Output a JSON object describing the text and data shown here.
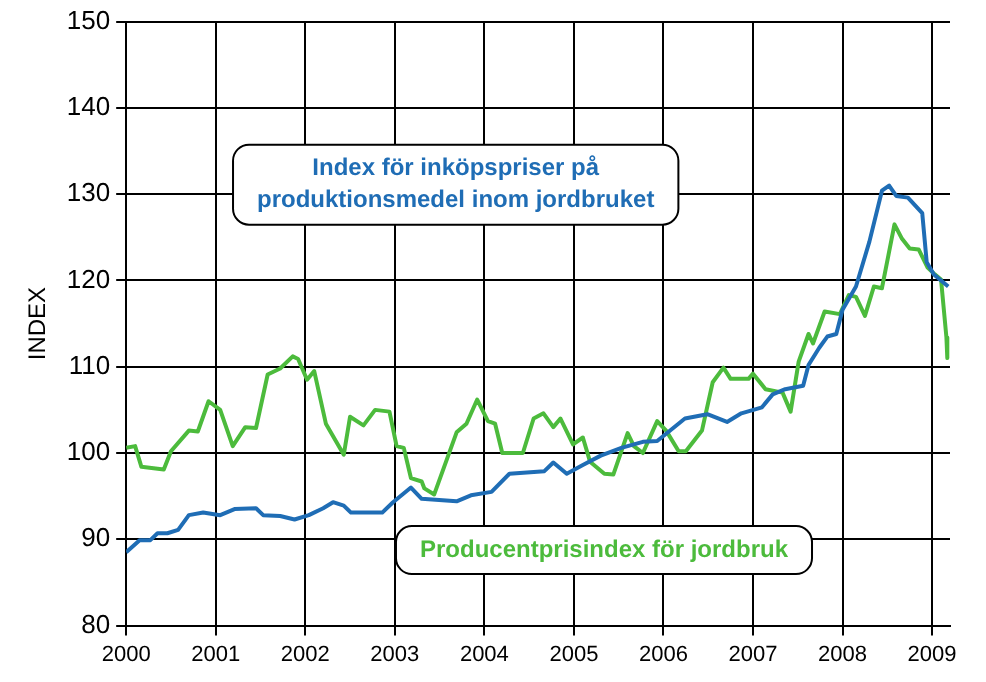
{
  "chart_data": {
    "type": "line",
    "ylabel": "INDEX",
    "xlim": [
      2000,
      2009.2
    ],
    "xticks": [
      2000,
      2001,
      2002,
      2003,
      2004,
      2005,
      2006,
      2007,
      2008,
      2009
    ],
    "ylim": [
      80,
      150
    ],
    "yticks": [
      80,
      90,
      100,
      110,
      120,
      130,
      140,
      150
    ],
    "grid": true,
    "legend": false,
    "marker": "none",
    "line_style": "solid",
    "series": [
      {
        "name": "Index för inköpspriser på produktionsmedel inom jordbruket",
        "color": "#1f6db5",
        "x": [
          2000,
          2000.15,
          2000.27,
          2000.35,
          2000.46,
          2000.58,
          2000.7,
          2000.86,
          2001.05,
          2001.21,
          2001.45,
          2001.53,
          2001.72,
          2001.88,
          2002.04,
          2002.2,
          2002.31,
          2002.43,
          2002.51,
          2002.86,
          2002.98,
          2003.18,
          2003.3,
          2003.69,
          2003.85,
          2004.08,
          2004.28,
          2004.67,
          2004.77,
          2004.92,
          2005.1,
          2005.3,
          2005.53,
          2005.77,
          2005.93,
          2006.24,
          2006.49,
          2006.71,
          2006.87,
          2007.1,
          2007.22,
          2007.36,
          2007.56,
          2007.62,
          2007.74,
          2007.83,
          2007.93,
          2008,
          2008.15,
          2008.3,
          2008.44,
          2008.52,
          2008.6,
          2008.73,
          2008.89,
          2008.94,
          2009.02,
          2009.18
        ],
        "values": [
          88.5,
          89.9,
          89.9,
          90.7,
          90.7,
          91.1,
          92.8,
          93.1,
          92.8,
          93.5,
          93.6,
          92.8,
          92.7,
          92.3,
          92.8,
          93.6,
          94.3,
          93.9,
          93.1,
          93.1,
          94.3,
          96,
          94.7,
          94.4,
          95.1,
          95.5,
          97.6,
          97.9,
          98.9,
          97.6,
          98.6,
          99.7,
          100.6,
          101.3,
          101.4,
          104,
          104.5,
          103.6,
          104.6,
          105.3,
          106.8,
          107.4,
          107.8,
          110.2,
          112.2,
          113.5,
          113.8,
          116.6,
          119.3,
          124.5,
          130.4,
          131,
          129.8,
          129.6,
          127.8,
          122.1,
          120.7,
          119.3
        ]
      },
      {
        "name": "Producentprisindex för jordbruk",
        "color": "#4cbb3c",
        "x": [
          2000,
          2000.1,
          2000.17,
          2000.42,
          2000.5,
          2000.7,
          2000.8,
          2000.92,
          2001.05,
          2001.19,
          2001.33,
          2001.45,
          2001.58,
          2001.72,
          2001.86,
          2001.92,
          2002.02,
          2002.1,
          2002.23,
          2002.43,
          2002.5,
          2002.65,
          2002.78,
          2002.94,
          2003.02,
          2003.1,
          2003.18,
          2003.3,
          2003.33,
          2003.44,
          2003.69,
          2003.8,
          2003.92,
          2004.04,
          2004.12,
          2004.2,
          2004.43,
          2004.55,
          2004.66,
          2004.77,
          2004.85,
          2004.99,
          2005.1,
          2005.18,
          2005.34,
          2005.44,
          2005.6,
          2005.67,
          2005.77,
          2005.93,
          2006.03,
          2006.17,
          2006.25,
          2006.43,
          2006.55,
          2006.67,
          2006.75,
          2006.95,
          2007,
          2007.14,
          2007.33,
          2007.42,
          2007.51,
          2007.62,
          2007.67,
          2007.8,
          2007.97,
          2008.07,
          2008.15,
          2008.25,
          2008.35,
          2008.44,
          2008.58,
          2008.66,
          2008.75,
          2008.85,
          2008.95,
          2009.03,
          2009.1,
          2009.16,
          2009.17
        ],
        "values": [
          100.6,
          100.8,
          98.4,
          98.1,
          100.2,
          102.6,
          102.5,
          106,
          105,
          100.8,
          103,
          102.9,
          109.1,
          109.8,
          111.2,
          110.9,
          108.5,
          109.5,
          103.4,
          99.8,
          104.2,
          103.2,
          105,
          104.8,
          100.8,
          100.6,
          97.1,
          96.7,
          95.9,
          95.2,
          102.4,
          103.4,
          106.2,
          103.7,
          103.4,
          100,
          100,
          104,
          104.6,
          103,
          104,
          101,
          101.8,
          99,
          97.6,
          97.5,
          102.3,
          100.8,
          100,
          103.7,
          102.6,
          100.2,
          100.2,
          102.6,
          108.2,
          109.9,
          108.6,
          108.6,
          109.2,
          107.4,
          107,
          104.8,
          110.6,
          113.8,
          112.7,
          116.4,
          116.1,
          118.3,
          118.1,
          115.9,
          119.3,
          119.1,
          126.5,
          124.9,
          123.7,
          123.6,
          121.5,
          120.7,
          120.1,
          113.4,
          111
        ]
      }
    ]
  }
}
